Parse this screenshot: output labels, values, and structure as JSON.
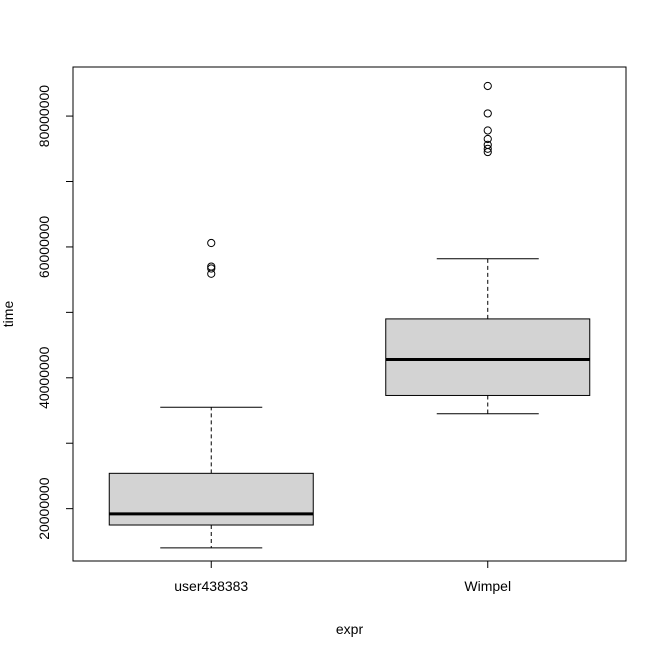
{
  "chart_data": {
    "type": "box",
    "xlabel": "expr",
    "ylabel": "time",
    "categories": [
      "user438383",
      "Wimpel"
    ],
    "y_ticks": [
      20000000,
      40000000,
      60000000,
      80000000
    ],
    "y_tick_labels": [
      "20000000",
      "40000000",
      "60000000",
      "80000000"
    ],
    "y_minor_ticks": [
      30000000,
      50000000,
      70000000
    ],
    "ylim": [
      12000000,
      87500000
    ],
    "grid": false,
    "legend": "none",
    "box_fill": "#d3d3d3",
    "line_color": "#000000",
    "series": [
      {
        "category": "user438383",
        "whisker_low": 14000000,
        "q1": 17500000,
        "median": 19200000,
        "q3": 25400000,
        "whisker_high": 35500000,
        "outliers": [
          60600000,
          57000000,
          56700000,
          55900000
        ]
      },
      {
        "category": "Wimpel",
        "whisker_low": 34500000,
        "q1": 37300000,
        "median": 42800000,
        "q3": 49000000,
        "whisker_high": 58200000,
        "outliers": [
          84600000,
          80400000,
          77800000,
          76500000,
          75600000,
          75000000,
          74500000
        ]
      }
    ]
  }
}
